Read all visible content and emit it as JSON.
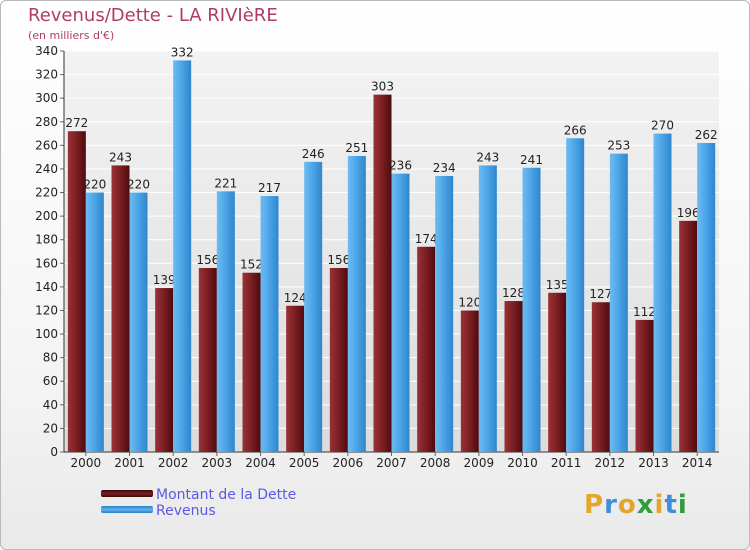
{
  "title": "Revenus/Dette - LA RIVIèRE",
  "subtitle": "(en milliers d'€)",
  "chart_data": {
    "type": "bar",
    "categories": [
      "2000",
      "2001",
      "2002",
      "2003",
      "2004",
      "2005",
      "2006",
      "2007",
      "2008",
      "2009",
      "2010",
      "2011",
      "2012",
      "2013",
      "2014"
    ],
    "series": [
      {
        "name": "Montant de la Dette",
        "color": "#7a1e22",
        "values": [
          272,
          243,
          139,
          156,
          152,
          124,
          156,
          303,
          174,
          120,
          128,
          135,
          127,
          112,
          196
        ]
      },
      {
        "name": "Revenus",
        "color": "#4aa3e6",
        "values": [
          220,
          220,
          332,
          221,
          217,
          246,
          251,
          236,
          234,
          243,
          241,
          266,
          253,
          270,
          262
        ]
      }
    ],
    "ylim": [
      0,
      340
    ],
    "yticks": [
      0,
      20,
      40,
      60,
      80,
      100,
      120,
      140,
      160,
      180,
      200,
      220,
      240,
      260,
      280,
      300,
      320,
      340
    ],
    "grid": true,
    "legend_position": "bottom-left"
  },
  "legend": {
    "items": [
      {
        "label": "Montant de la Dette",
        "color": "#7a1e22"
      },
      {
        "label": "Revenus",
        "color": "#4aa3e6"
      }
    ]
  },
  "logo": {
    "letters": [
      "P",
      "r",
      "o",
      "x",
      "i",
      "t",
      "i"
    ],
    "colors": [
      "#e4a52b",
      "#3d8fd8",
      "#e4a52b",
      "#2f9e3a",
      "#e4a52b",
      "#3d8fd8",
      "#2f9e3a"
    ]
  }
}
